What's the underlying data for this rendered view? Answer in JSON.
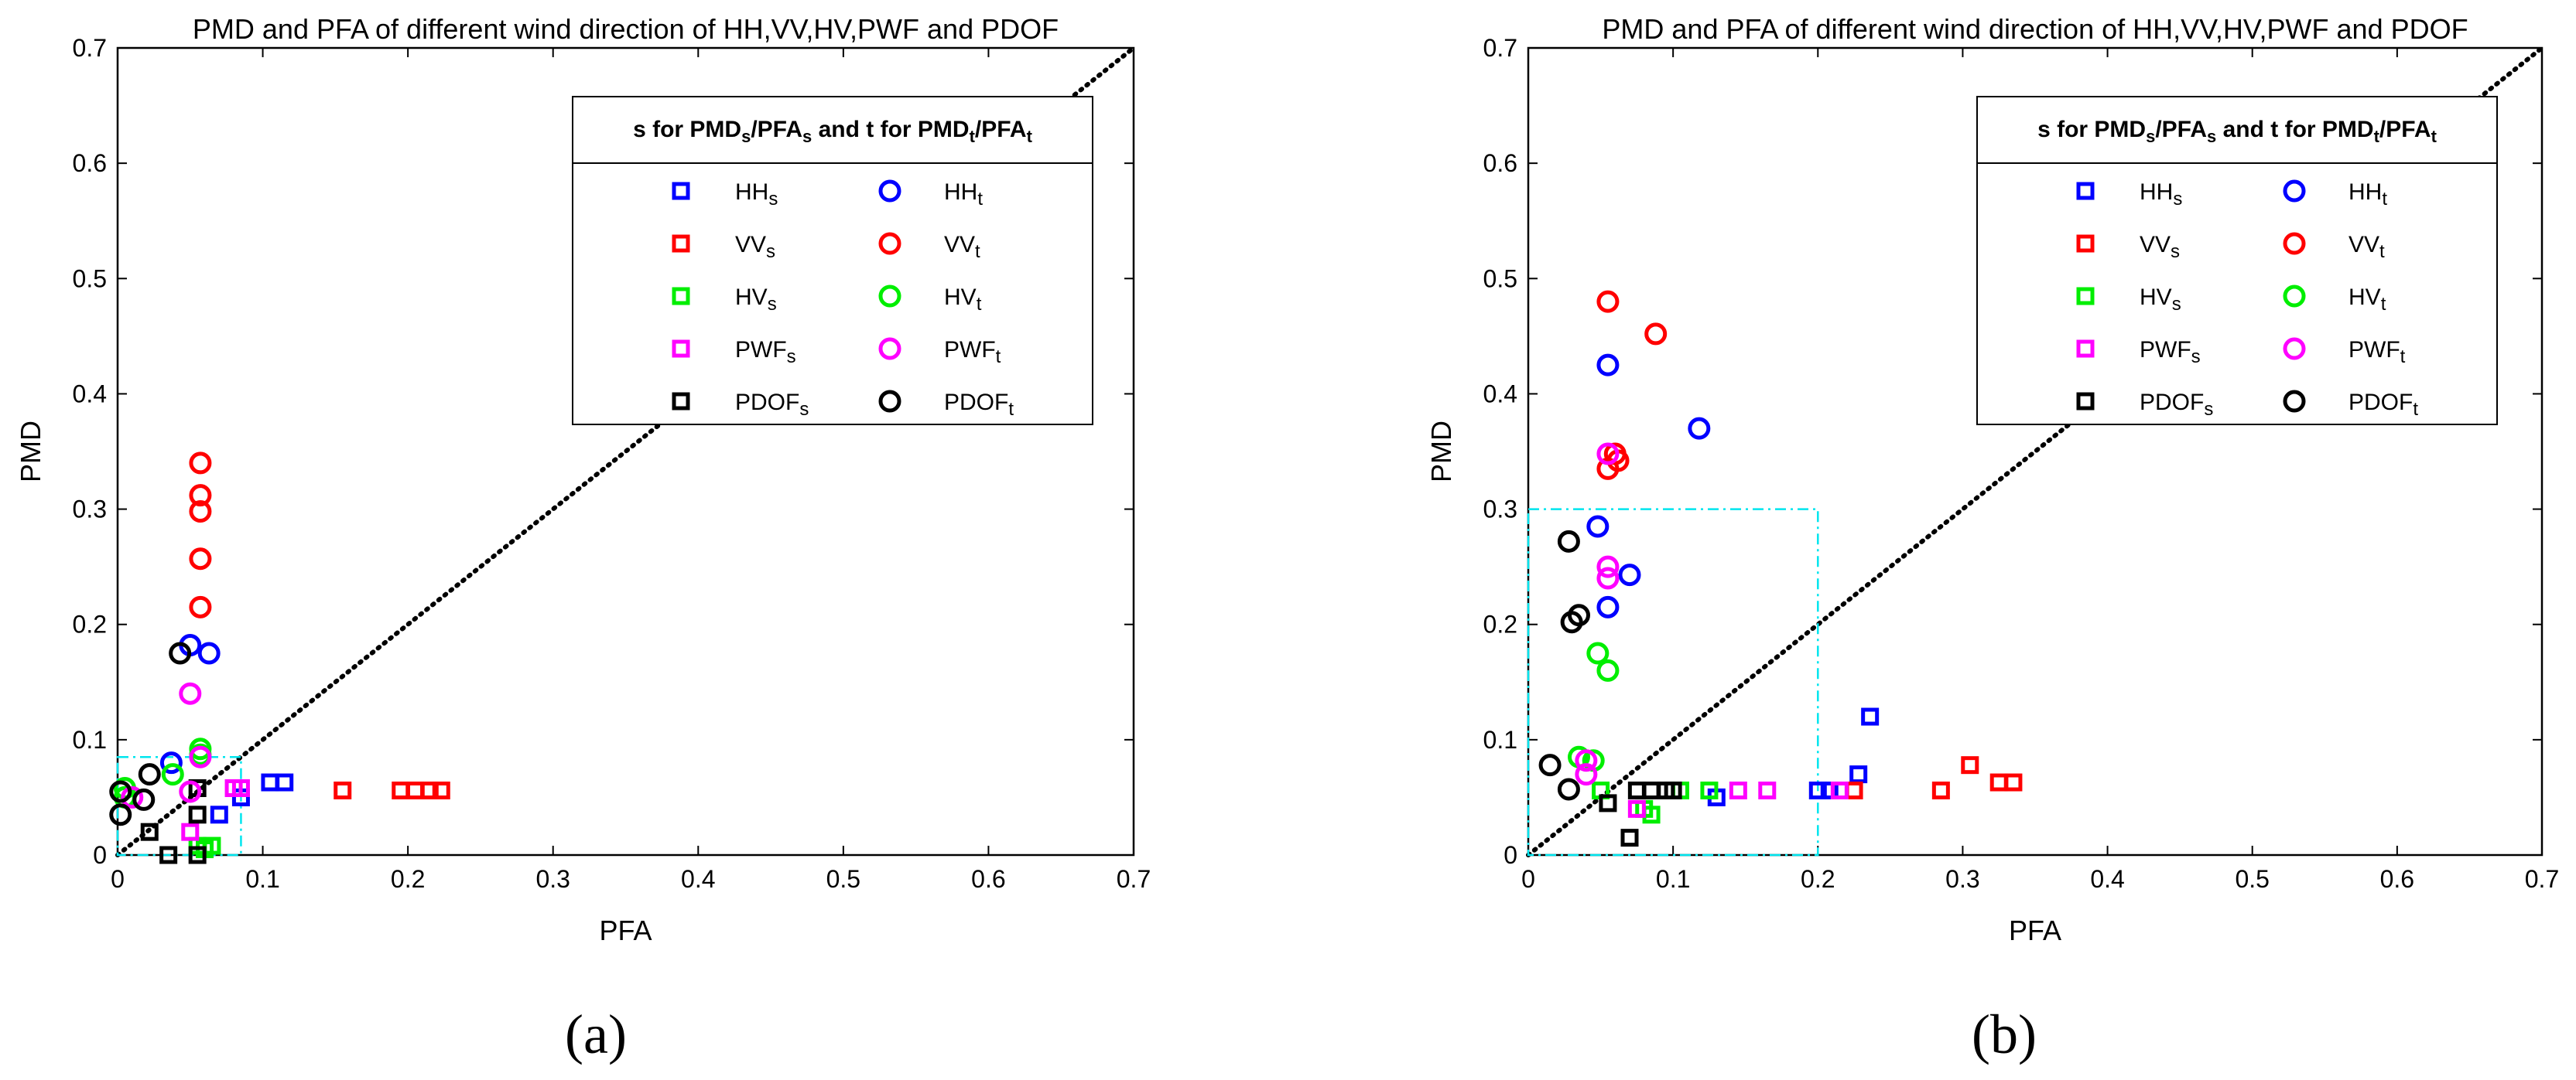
{
  "figure": {
    "panel_labels": [
      "(a)",
      "(b)"
    ]
  },
  "chart_data": [
    {
      "type": "scatter",
      "title": "PMD and PFA of different wind direction of HH,VV,HV,PWF and PDOF",
      "xlabel": "PFA",
      "ylabel": "PMD",
      "xlim": [
        0,
        0.7
      ],
      "ylim": [
        0,
        0.7
      ],
      "xticks": [
        "0",
        "0.1",
        "0.2",
        "0.3",
        "0.4",
        "0.5",
        "0.6",
        "0.7"
      ],
      "yticks": [
        "0",
        "0.1",
        "0.2",
        "0.3",
        "0.4",
        "0.5",
        "0.6",
        "0.7"
      ],
      "diagonal": "dotted black y = x",
      "highlight_box": {
        "color": "#00e5ee",
        "style": "dash-dot",
        "x": [
          0,
          0.085
        ],
        "y": [
          0,
          0.085
        ]
      },
      "legend": {
        "position": "top-right",
        "title": {
          "t1": "s for PMD",
          "t2": "s",
          "t3": "/PFA",
          "t4": "s",
          "t5": " and t for PMD",
          "t6": "t",
          "t7": "/PFA",
          "t8": "t"
        },
        "columns": 2
      },
      "series": [
        {
          "name": "HH",
          "sub": "s",
          "marker": "square",
          "color": "#0000ff",
          "points": [
            [
              0.07,
              0.035
            ],
            [
              0.085,
              0.05
            ],
            [
              0.105,
              0.063
            ],
            [
              0.115,
              0.063
            ]
          ]
        },
        {
          "name": "VV",
          "sub": "s",
          "marker": "square",
          "color": "#ff0000",
          "points": [
            [
              0.155,
              0.056
            ],
            [
              0.195,
              0.056
            ],
            [
              0.205,
              0.056
            ],
            [
              0.215,
              0.056
            ],
            [
              0.223,
              0.056
            ]
          ]
        },
        {
          "name": "HV",
          "sub": "s",
          "marker": "square",
          "color": "#00ee00",
          "points": [
            [
              0.055,
              0.008
            ],
            [
              0.06,
              0.005
            ],
            [
              0.065,
              0.008
            ]
          ]
        },
        {
          "name": "PWF",
          "sub": "s",
          "marker": "square",
          "color": "#ff00ff",
          "points": [
            [
              0.05,
              0.02
            ],
            [
              0.08,
              0.058
            ],
            [
              0.085,
              0.058
            ]
          ]
        },
        {
          "name": "PDOF",
          "sub": "s",
          "marker": "square",
          "color": "#000000",
          "points": [
            [
              0.035,
              0.0
            ],
            [
              0.055,
              0.0
            ],
            [
              0.022,
              0.02
            ],
            [
              0.055,
              0.035
            ],
            [
              0.055,
              0.058
            ]
          ]
        },
        {
          "name": "HH",
          "sub": "t",
          "marker": "circle",
          "color": "#0000ff",
          "points": [
            [
              0.05,
              0.182
            ],
            [
              0.063,
              0.175
            ],
            [
              0.037,
              0.08
            ]
          ]
        },
        {
          "name": "VV",
          "sub": "t",
          "marker": "circle",
          "color": "#ff0000",
          "points": [
            [
              0.057,
              0.34
            ],
            [
              0.057,
              0.312
            ],
            [
              0.057,
              0.298
            ],
            [
              0.057,
              0.257
            ],
            [
              0.057,
              0.215
            ]
          ]
        },
        {
          "name": "HV",
          "sub": "t",
          "marker": "circle",
          "color": "#00ee00",
          "points": [
            [
              0.057,
              0.092
            ],
            [
              0.057,
              0.087
            ],
            [
              0.038,
              0.07
            ],
            [
              0.005,
              0.058
            ],
            [
              0.005,
              0.05
            ]
          ]
        },
        {
          "name": "PWF",
          "sub": "t",
          "marker": "circle",
          "color": "#ff00ff",
          "points": [
            [
              0.05,
              0.14
            ],
            [
              0.057,
              0.085
            ],
            [
              0.05,
              0.055
            ],
            [
              0.01,
              0.05
            ]
          ]
        },
        {
          "name": "PDOF",
          "sub": "t",
          "marker": "circle",
          "color": "#000000",
          "points": [
            [
              0.043,
              0.175
            ],
            [
              0.002,
              0.055
            ],
            [
              0.002,
              0.035
            ],
            [
              0.022,
              0.07
            ],
            [
              0.018,
              0.048
            ]
          ]
        }
      ]
    },
    {
      "type": "scatter",
      "title": "PMD and PFA of different wind direction of HH,VV,HV,PWF and PDOF",
      "xlabel": "PFA",
      "ylabel": "PMD",
      "xlim": [
        0,
        0.7
      ],
      "ylim": [
        0,
        0.7
      ],
      "xticks": [
        "0",
        "0.1",
        "0.2",
        "0.3",
        "0.4",
        "0.5",
        "0.6",
        "0.7"
      ],
      "yticks": [
        "0",
        "0.1",
        "0.2",
        "0.3",
        "0.4",
        "0.5",
        "0.6",
        "0.7"
      ],
      "diagonal": "dotted black y = x",
      "highlight_box": {
        "color": "#00e5ee",
        "style": "dash-dot",
        "x": [
          0,
          0.2
        ],
        "y": [
          0,
          0.3
        ]
      },
      "legend": {
        "position": "top-right",
        "title": {
          "t1": "s for PMD",
          "t2": "s",
          "t3": "/PFA",
          "t4": "s",
          "t5": " and t for PMD",
          "t6": "t",
          "t7": "/PFA",
          "t8": "t"
        },
        "columns": 2
      },
      "series": [
        {
          "name": "HH",
          "sub": "s",
          "marker": "square",
          "color": "#0000ff",
          "points": [
            [
              0.13,
              0.05
            ],
            [
              0.2,
              0.056
            ],
            [
              0.208,
              0.056
            ],
            [
              0.228,
              0.07
            ],
            [
              0.236,
              0.12
            ]
          ]
        },
        {
          "name": "VV",
          "sub": "s",
          "marker": "square",
          "color": "#ff0000",
          "points": [
            [
              0.225,
              0.056
            ],
            [
              0.285,
              0.056
            ],
            [
              0.305,
              0.078
            ],
            [
              0.325,
              0.063
            ],
            [
              0.335,
              0.063
            ]
          ]
        },
        {
          "name": "HV",
          "sub": "s",
          "marker": "square",
          "color": "#00ee00",
          "points": [
            [
              0.05,
              0.056
            ],
            [
              0.08,
              0.04
            ],
            [
              0.085,
              0.035
            ],
            [
              0.105,
              0.056
            ],
            [
              0.125,
              0.056
            ]
          ]
        },
        {
          "name": "PWF",
          "sub": "s",
          "marker": "square",
          "color": "#ff00ff",
          "points": [
            [
              0.075,
              0.04
            ],
            [
              0.145,
              0.056
            ],
            [
              0.165,
              0.056
            ],
            [
              0.215,
              0.056
            ]
          ]
        },
        {
          "name": "PDOF",
          "sub": "s",
          "marker": "square",
          "color": "#000000",
          "points": [
            [
              0.055,
              0.045
            ],
            [
              0.07,
              0.015
            ],
            [
              0.075,
              0.056
            ],
            [
              0.085,
              0.056
            ],
            [
              0.095,
              0.056
            ],
            [
              0.1,
              0.056
            ]
          ]
        },
        {
          "name": "HH",
          "sub": "t",
          "marker": "circle",
          "color": "#0000ff",
          "points": [
            [
              0.055,
              0.425
            ],
            [
              0.118,
              0.37
            ],
            [
              0.048,
              0.285
            ],
            [
              0.07,
              0.243
            ],
            [
              0.055,
              0.215
            ]
          ]
        },
        {
          "name": "VV",
          "sub": "t",
          "marker": "circle",
          "color": "#ff0000",
          "points": [
            [
              0.055,
              0.48
            ],
            [
              0.088,
              0.452
            ],
            [
              0.06,
              0.348
            ],
            [
              0.062,
              0.342
            ],
            [
              0.055,
              0.335
            ]
          ]
        },
        {
          "name": "HV",
          "sub": "t",
          "marker": "circle",
          "color": "#00ee00",
          "points": [
            [
              0.048,
              0.175
            ],
            [
              0.055,
              0.16
            ],
            [
              0.035,
              0.085
            ],
            [
              0.045,
              0.082
            ]
          ]
        },
        {
          "name": "PWF",
          "sub": "t",
          "marker": "circle",
          "color": "#ff00ff",
          "points": [
            [
              0.055,
              0.348
            ],
            [
              0.055,
              0.25
            ],
            [
              0.055,
              0.24
            ],
            [
              0.04,
              0.082
            ],
            [
              0.04,
              0.07
            ]
          ]
        },
        {
          "name": "PDOF",
          "sub": "t",
          "marker": "circle",
          "color": "#000000",
          "points": [
            [
              0.028,
              0.272
            ],
            [
              0.03,
              0.202
            ],
            [
              0.035,
              0.208
            ],
            [
              0.015,
              0.078
            ],
            [
              0.028,
              0.057
            ]
          ]
        }
      ]
    }
  ]
}
